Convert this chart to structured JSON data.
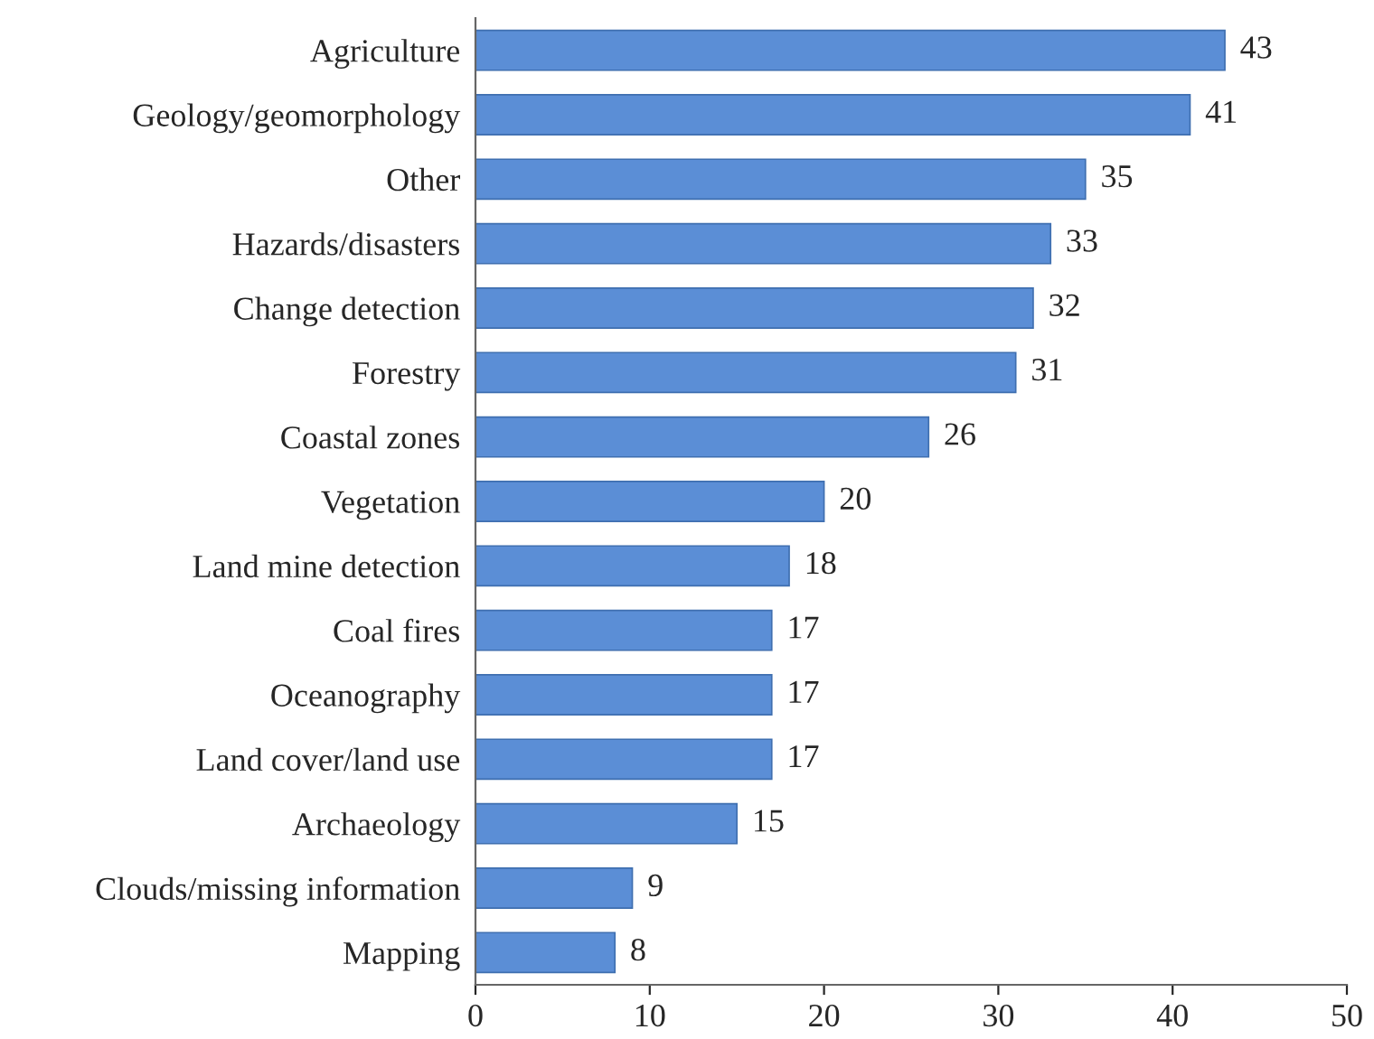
{
  "chart_data": {
    "type": "bar",
    "orientation": "horizontal",
    "categories": [
      "Agriculture",
      "Geology/geomorphology",
      "Other",
      "Hazards/disasters",
      "Change detection",
      "Forestry",
      "Coastal zones",
      "Vegetation",
      "Land mine detection",
      "Coal fires",
      "Oceanography",
      "Land cover/land use",
      "Archaeology",
      "Clouds/missing information",
      "Mapping"
    ],
    "values": [
      43,
      41,
      35,
      33,
      32,
      31,
      26,
      20,
      18,
      17,
      17,
      17,
      15,
      9,
      8
    ],
    "color": "#5b8ed6",
    "xlim": [
      0,
      50
    ],
    "xticks": [
      0,
      10,
      20,
      30,
      40,
      50
    ],
    "data_labels": true,
    "grid": false,
    "legend": false
  }
}
